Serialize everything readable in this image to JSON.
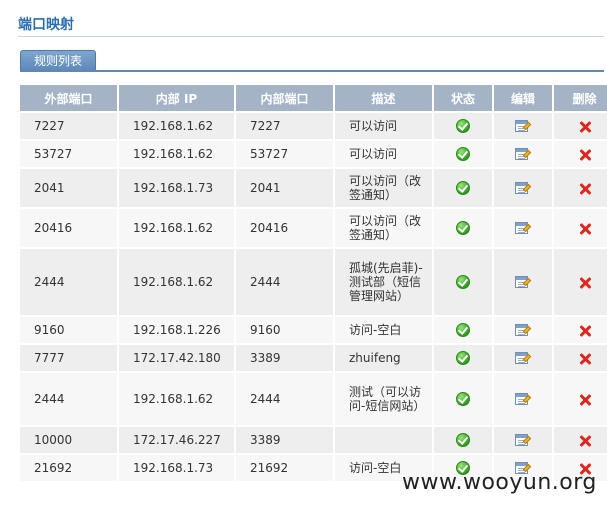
{
  "page": {
    "title": "端口映射"
  },
  "tabs": [
    {
      "label": "规则列表"
    }
  ],
  "table": {
    "columns": [
      "外部端口",
      "内部 IP",
      "内部端口",
      "描述",
      "状态",
      "编辑",
      "删除"
    ],
    "rows": [
      {
        "ext_port": "7227",
        "int_ip": "192.168.1.62",
        "int_port": "7227",
        "desc": "可以访问"
      },
      {
        "ext_port": "53727",
        "int_ip": "192.168.1.62",
        "int_port": "53727",
        "desc": "可以访问"
      },
      {
        "ext_port": "2041",
        "int_ip": "192.168.1.73",
        "int_port": "2041",
        "desc": "可以访问（改签通知）"
      },
      {
        "ext_port": "20416",
        "int_ip": "192.168.1.62",
        "int_port": "20416",
        "desc": "可以访问（改签通知）"
      },
      {
        "ext_port": "2444",
        "int_ip": "192.168.1.62",
        "int_port": "2444",
        "desc": "孤城(先启菲)-测试部（短信管理网站）"
      },
      {
        "ext_port": "9160",
        "int_ip": "192.168.1.226",
        "int_port": "9160",
        "desc": "访问-空白"
      },
      {
        "ext_port": "7777",
        "int_ip": "172.17.42.180",
        "int_port": "3389",
        "desc": "zhuifeng"
      },
      {
        "ext_port": "2444",
        "int_ip": "192.168.1.62",
        "int_port": "2444",
        "desc": "测试（可以访问-短信网站）"
      },
      {
        "ext_port": "10000",
        "int_ip": "172.17.46.227",
        "int_port": "3389",
        "desc": ""
      },
      {
        "ext_port": "21692",
        "int_ip": "192.168.1.73",
        "int_port": "21692",
        "desc": "访问-空白"
      }
    ]
  },
  "icons": {
    "status": "check-circle-icon",
    "edit": "edit-note-icon",
    "delete": "red-x-icon"
  },
  "colors": {
    "title": "#2b6fb2",
    "header_bg": "#a4b4c6",
    "tab_bg": "#5d88ba",
    "delete": "#e0251f",
    "ok": "#2f9a1e"
  },
  "watermark": {
    "text": "www.wooyun.org"
  }
}
